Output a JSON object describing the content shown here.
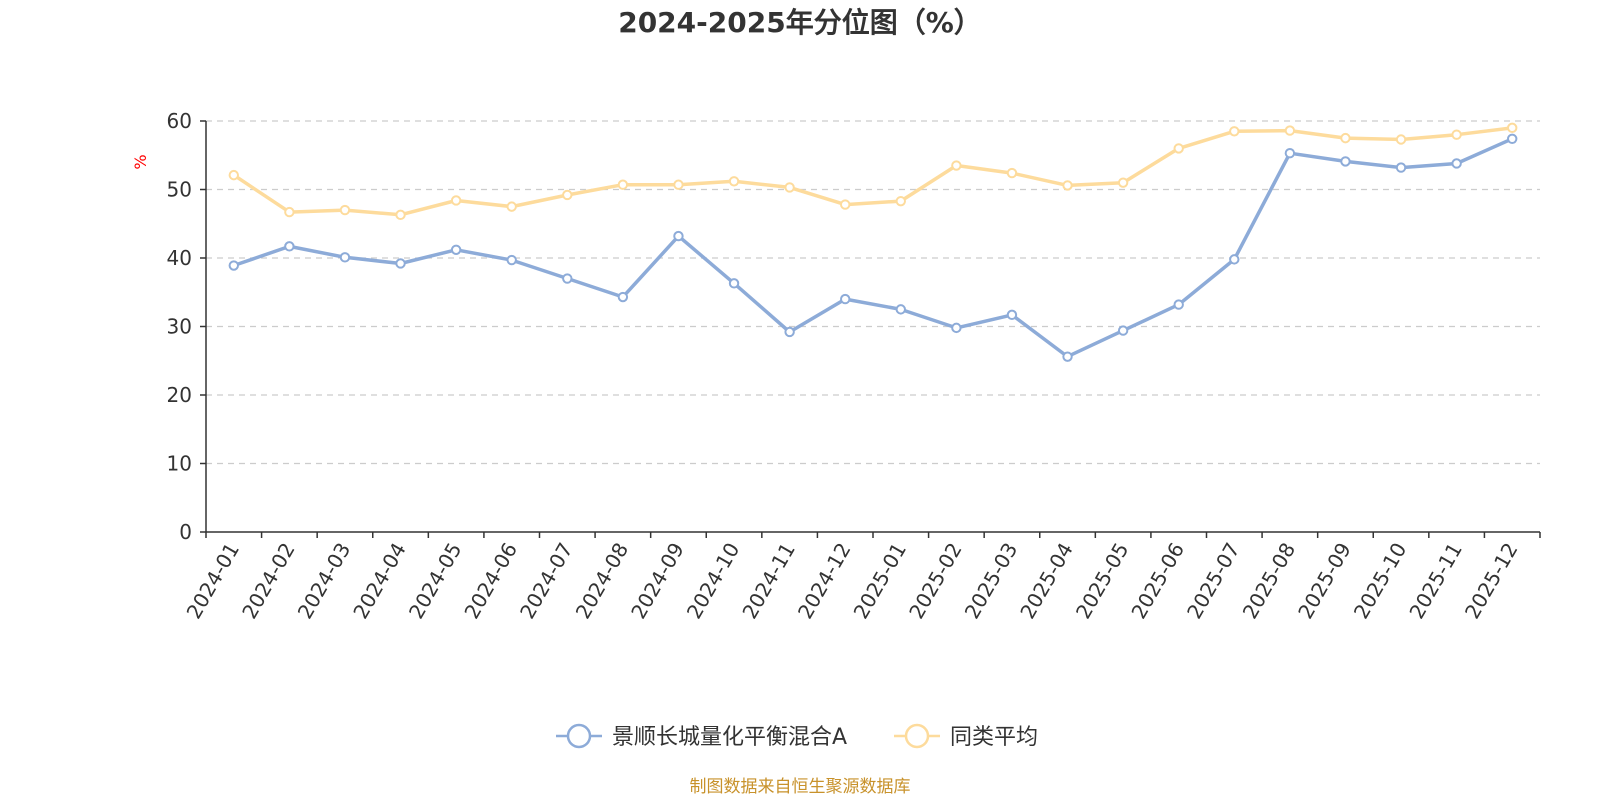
{
  "chart_data": {
    "type": "line",
    "title": "2024-2025年分位图（%）",
    "ylabel": "%",
    "xlabel": "",
    "ylim": [
      0,
      60
    ],
    "yticks": [
      0,
      10,
      20,
      30,
      40,
      50,
      60
    ],
    "grid": "horizontal-dashed",
    "legend_position": "bottom-center",
    "categories": [
      "2024-01",
      "2024-02",
      "2024-03",
      "2024-04",
      "2024-05",
      "2024-06",
      "2024-07",
      "2024-08",
      "2024-09",
      "2024-10",
      "2024-11",
      "2024-12",
      "2025-01",
      "2025-02",
      "2025-03",
      "2025-04",
      "2025-05",
      "2025-06",
      "2025-07",
      "2025-08",
      "2025-09",
      "2025-10",
      "2025-11",
      "2025-12"
    ],
    "series": [
      {
        "name": "景顺长城量化平衡混合A",
        "color": "#8dabd8",
        "values": [
          38.9,
          41.7,
          40.1,
          39.2,
          41.2,
          39.7,
          37.0,
          34.3,
          43.2,
          36.3,
          29.2,
          34.0,
          32.5,
          29.8,
          31.7,
          25.6,
          29.4,
          33.2,
          39.8,
          55.3,
          54.1,
          53.2,
          53.8,
          57.4
        ]
      },
      {
        "name": "同类平均",
        "color": "#fddb9c",
        "values": [
          52.1,
          46.7,
          47.0,
          46.3,
          48.4,
          47.5,
          49.2,
          50.7,
          50.7,
          51.2,
          50.3,
          47.8,
          48.3,
          53.5,
          52.4,
          50.6,
          51.0,
          56.0,
          58.5,
          58.6,
          57.5,
          57.3,
          58.0,
          59.0
        ]
      }
    ]
  },
  "source": "制图数据来自恒生聚源数据库"
}
